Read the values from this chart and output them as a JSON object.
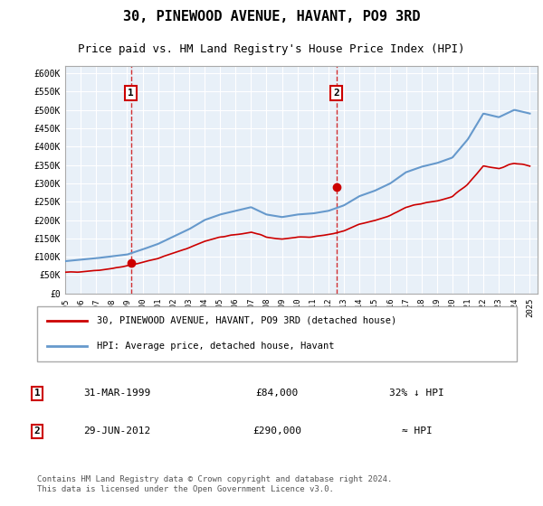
{
  "title": "30, PINEWOOD AVENUE, HAVANT, PO9 3RD",
  "subtitle": "Price paid vs. HM Land Registry's House Price Index (HPI)",
  "background_color": "#e8f0f8",
  "plot_bg_color": "#e8f0f8",
  "ylim": [
    0,
    620000
  ],
  "yticks": [
    0,
    50000,
    100000,
    150000,
    200000,
    250000,
    300000,
    350000,
    400000,
    450000,
    500000,
    550000,
    600000
  ],
  "ytick_labels": [
    "£0",
    "£50K",
    "£100K",
    "£150K",
    "£200K",
    "£250K",
    "£300K",
    "£350K",
    "£400K",
    "£450K",
    "£500K",
    "£550K",
    "£600K"
  ],
  "xlim_start": 1995.5,
  "xlim_end": 2025.5,
  "legend_entry1": "30, PINEWOOD AVENUE, HAVANT, PO9 3RD (detached house)",
  "legend_entry2": "HPI: Average price, detached house, Havant",
  "sale1_x": 1999.25,
  "sale1_y": 84000,
  "sale1_label": "1",
  "sale2_x": 2012.5,
  "sale2_y": 290000,
  "sale2_label": "2",
  "table_row1": [
    "1",
    "31-MAR-1999",
    "£84,000",
    "32% ↓ HPI"
  ],
  "table_row2": [
    "2",
    "29-JUN-2012",
    "£290,000",
    "≈ HPI"
  ],
  "footnote": "Contains HM Land Registry data © Crown copyright and database right 2024.\nThis data is licensed under the Open Government Licence v3.0.",
  "hpi_color": "#6699cc",
  "price_color": "#cc0000",
  "dashed_line_color": "#cc0000",
  "hpi_years": [
    1995,
    1996,
    1997,
    1998,
    1999,
    2000,
    2001,
    2002,
    2003,
    2004,
    2005,
    2006,
    2007,
    2008,
    2009,
    2010,
    2011,
    2012,
    2013,
    2014,
    2015,
    2016,
    2017,
    2018,
    2019,
    2020,
    2021,
    2022,
    2023,
    2024,
    2025
  ],
  "hpi_values": [
    88000,
    92000,
    96000,
    101000,
    106000,
    120000,
    135000,
    155000,
    175000,
    200000,
    215000,
    225000,
    235000,
    215000,
    208000,
    215000,
    218000,
    225000,
    240000,
    265000,
    280000,
    300000,
    330000,
    345000,
    355000,
    370000,
    420000,
    490000,
    480000,
    500000,
    490000
  ],
  "price_years": [
    1995,
    1996,
    1997,
    1998,
    1999,
    2000,
    2001,
    2002,
    2003,
    2004,
    2005,
    2006,
    2007,
    2008,
    2009,
    2010,
    2011,
    2012,
    2013,
    2014,
    2015,
    2016,
    2017,
    2018,
    2019,
    2020,
    2021,
    2022,
    2023,
    2024,
    2025
  ],
  "price_values": [
    57000,
    60000,
    63000,
    68000,
    75000,
    85000,
    96000,
    110000,
    125000,
    142000,
    153000,
    160000,
    167000,
    153000,
    148000,
    153000,
    155000,
    160000,
    170000,
    188000,
    199000,
    213000,
    234000,
    245000,
    252000,
    263000,
    298000,
    348000,
    340000,
    355000,
    348000
  ]
}
